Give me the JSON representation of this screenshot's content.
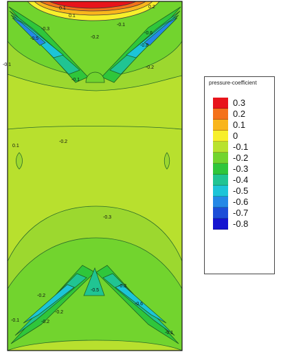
{
  "chart_data": {
    "type": "heatmap",
    "legend_title": "pressure-coefficient",
    "legend_position": "right",
    "levels": [
      "0.3",
      "0.2",
      "0.1",
      "0",
      "-0.1",
      "-0.2",
      "-0.3",
      "-0.4",
      "-0.5",
      "-0.6",
      "-0.7",
      "-0.8"
    ],
    "level_colors": [
      "#e8141b",
      "#f4721a",
      "#f9b51c",
      "#f7ef2b",
      "#b9e22e",
      "#72d42e",
      "#2fc63b",
      "#20c493",
      "#1cc4d8",
      "#2488e6",
      "#1c4ed8",
      "#1414d0"
    ],
    "contour_labels": [
      "0.1",
      "0.1",
      "0.2",
      "-0.1",
      "-0.2",
      "-0.3",
      "-0.5",
      "-0.6",
      "-0.8",
      "-0.2",
      "-0.1",
      "-0.1",
      "-0.2",
      "-0.3",
      "-0.5",
      "-0.2",
      "-0.1",
      "-0.1",
      "-0.2",
      "-0.3",
      "-0.6",
      "-0.2",
      "0.1"
    ]
  }
}
